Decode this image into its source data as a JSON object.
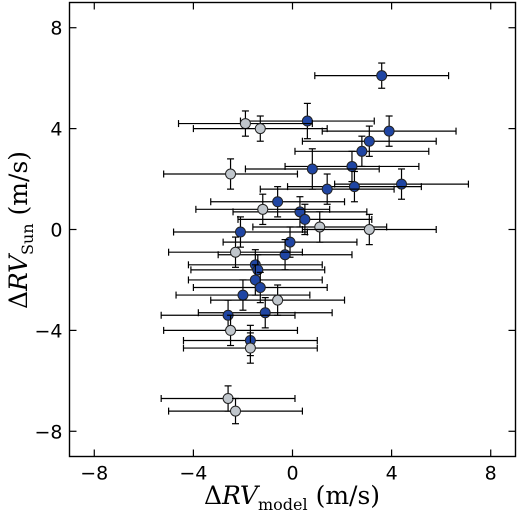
{
  "chart_data": {
    "type": "scatter",
    "title": "",
    "xlabel": {
      "delta": "Δ",
      "var": "RV",
      "sub": "model",
      "unit": " (m/s)"
    },
    "ylabel": {
      "delta": "Δ",
      "var": "RV",
      "sub": "Sun",
      "unit": " (m/s)"
    },
    "xlim": [
      -9,
      9
    ],
    "ylim": [
      -9,
      9
    ],
    "xticks": [
      -8,
      -4,
      0,
      4,
      8
    ],
    "yticks": [
      -8,
      -4,
      0,
      4,
      8
    ],
    "xtick_labels": [
      "−8",
      "−4",
      "0",
      "4",
      "8"
    ],
    "ytick_labels": [
      "−8",
      "−4",
      "0",
      "4",
      "8"
    ],
    "grid": false,
    "colors": {
      "dark": "#1f45a3",
      "light": "#c0c6cc",
      "errorbar": "#000000",
      "edge": "#222222"
    },
    "series": [
      {
        "color": "dark",
        "points": [
          {
            "x": 3.6,
            "y": 6.1,
            "xerr": 2.7,
            "yerr": 0.5
          },
          {
            "x": 0.6,
            "y": 4.3,
            "xerr": 2.7,
            "yerr": 0.7
          },
          {
            "x": 3.9,
            "y": 3.9,
            "xerr": 2.7,
            "yerr": 0.6
          },
          {
            "x": 3.1,
            "y": 3.5,
            "xerr": 2.7,
            "yerr": 0.6
          },
          {
            "x": 2.8,
            "y": 3.1,
            "xerr": 2.7,
            "yerr": 0.6
          },
          {
            "x": 2.4,
            "y": 2.5,
            "xerr": 2.7,
            "yerr": 0.6
          },
          {
            "x": 0.8,
            "y": 2.4,
            "xerr": 2.7,
            "yerr": 0.8
          },
          {
            "x": 4.4,
            "y": 1.8,
            "xerr": 2.7,
            "yerr": 0.6
          },
          {
            "x": 2.5,
            "y": 1.7,
            "xerr": 2.7,
            "yerr": 0.6
          },
          {
            "x": 1.4,
            "y": 1.6,
            "xerr": 2.7,
            "yerr": 0.6
          },
          {
            "x": -0.6,
            "y": 1.1,
            "xerr": 2.7,
            "yerr": 0.6
          },
          {
            "x": 0.3,
            "y": 0.7,
            "xerr": 2.7,
            "yerr": 0.6
          },
          {
            "x": 0.5,
            "y": 0.4,
            "xerr": 2.7,
            "yerr": 0.6
          },
          {
            "x": -2.1,
            "y": -0.1,
            "xerr": 2.7,
            "yerr": 0.6
          },
          {
            "x": -0.1,
            "y": -0.5,
            "xerr": 2.7,
            "yerr": 0.6
          },
          {
            "x": -0.3,
            "y": -1.0,
            "xerr": 2.7,
            "yerr": 0.6
          },
          {
            "x": -1.5,
            "y": -1.4,
            "xerr": 2.7,
            "yerr": 0.6
          },
          {
            "x": -1.4,
            "y": -1.6,
            "xerr": 2.7,
            "yerr": 0.6
          },
          {
            "x": -1.5,
            "y": -2.0,
            "xerr": 2.7,
            "yerr": 0.6
          },
          {
            "x": -1.3,
            "y": -2.3,
            "xerr": 2.7,
            "yerr": 0.6
          },
          {
            "x": -2.0,
            "y": -2.6,
            "xerr": 2.7,
            "yerr": 0.6
          },
          {
            "x": -1.1,
            "y": -3.3,
            "xerr": 2.7,
            "yerr": 0.6
          },
          {
            "x": -2.6,
            "y": -3.4,
            "xerr": 2.7,
            "yerr": 0.6
          },
          {
            "x": -1.7,
            "y": -4.4,
            "xerr": 2.7,
            "yerr": 0.6
          }
        ]
      },
      {
        "color": "light",
        "points": [
          {
            "x": -1.9,
            "y": 4.2,
            "xerr": 2.7,
            "yerr": 0.5
          },
          {
            "x": -1.3,
            "y": 4.0,
            "xerr": 2.7,
            "yerr": 0.5
          },
          {
            "x": -2.5,
            "y": 2.2,
            "xerr": 2.7,
            "yerr": 0.6
          },
          {
            "x": -1.2,
            "y": 0.8,
            "xerr": 2.7,
            "yerr": 0.6
          },
          {
            "x": 1.1,
            "y": 0.1,
            "xerr": 2.7,
            "yerr": 0.6
          },
          {
            "x": 3.1,
            "y": 0.0,
            "xerr": 2.7,
            "yerr": 0.6
          },
          {
            "x": -2.3,
            "y": -0.9,
            "xerr": 2.7,
            "yerr": 0.6
          },
          {
            "x": -0.6,
            "y": -2.8,
            "xerr": 2.7,
            "yerr": 0.6
          },
          {
            "x": -2.5,
            "y": -4.0,
            "xerr": 2.7,
            "yerr": 0.6
          },
          {
            "x": -1.7,
            "y": -4.7,
            "xerr": 2.7,
            "yerr": 0.6
          },
          {
            "x": -2.6,
            "y": -6.7,
            "xerr": 2.7,
            "yerr": 0.5
          },
          {
            "x": -2.3,
            "y": -7.2,
            "xerr": 2.7,
            "yerr": 0.5
          }
        ]
      }
    ]
  }
}
